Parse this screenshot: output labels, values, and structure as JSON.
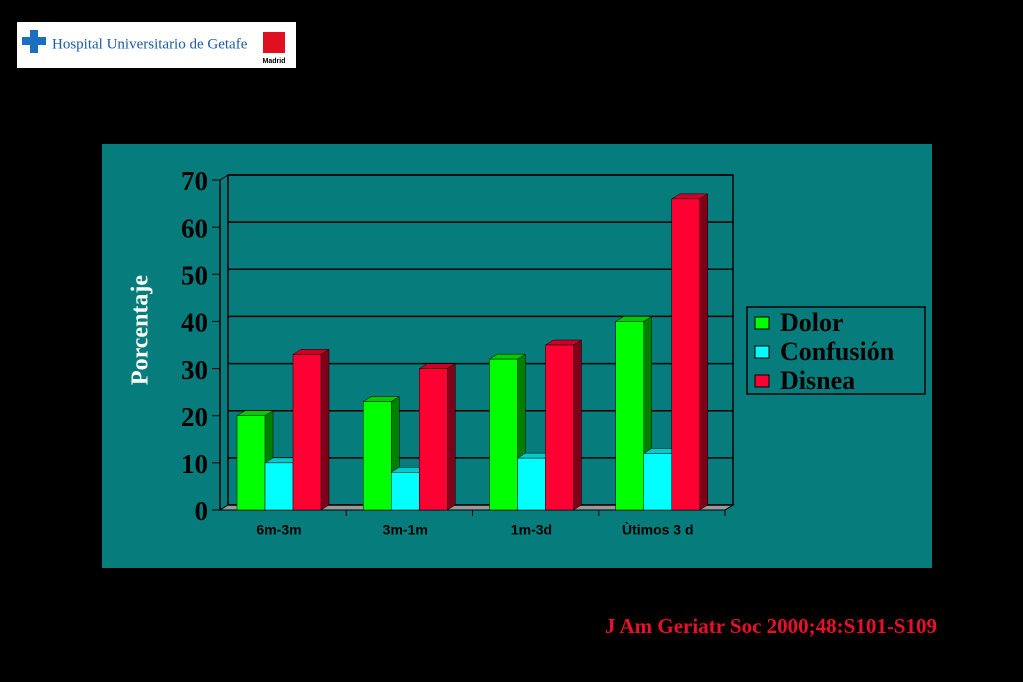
{
  "header": {
    "logo_text": "Hospital Universitario de Getafe",
    "region": "Madrid"
  },
  "chart_data": {
    "type": "bar",
    "y_label": "Porcentaje",
    "categories": [
      "6m-3m",
      "3m-1m",
      "1m-3d",
      "Ùtimos 3 d"
    ],
    "series": [
      {
        "name": "Dolor",
        "color": "#00ff00",
        "values": [
          20,
          23,
          32,
          40
        ]
      },
      {
        "name": "Confusión",
        "color": "#00ffff",
        "values": [
          10,
          8,
          11,
          12
        ]
      },
      {
        "name": "Disnea",
        "color": "#ff0033",
        "values": [
          33,
          30,
          35,
          66
        ]
      }
    ],
    "ylim": [
      0,
      70
    ],
    "yticks": [
      0,
      10,
      20,
      30,
      40,
      50,
      60,
      70
    ],
    "grid": true,
    "legend": "right"
  },
  "citation": "J Am Geriatr Soc 2000;48:S101-S109"
}
